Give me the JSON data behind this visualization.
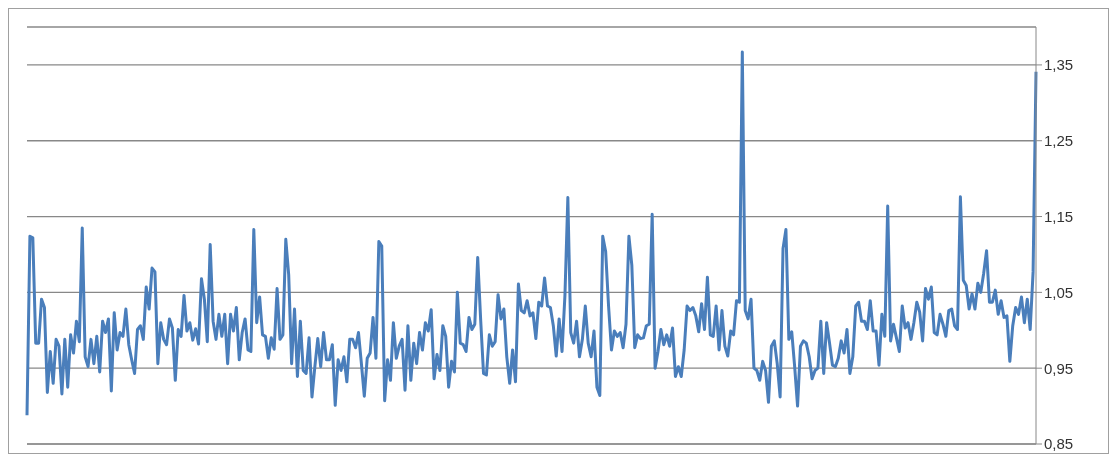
{
  "chart_data": {
    "type": "line",
    "color": "#4a7ebb",
    "values": [
      0.888,
      1.124,
      1.122,
      0.983,
      0.983,
      1.041,
      1.03,
      0.918,
      0.972,
      0.93,
      0.988,
      0.979,
      0.916,
      0.988,
      0.925,
      0.994,
      0.97,
      1.012,
      0.985,
      1.135,
      0.965,
      0.952,
      0.988,
      0.956,
      0.992,
      0.945,
      1.012,
      0.997,
      1.015,
      0.92,
      1.023,
      0.974,
      0.997,
      0.992,
      1.028,
      0.981,
      0.961,
      0.943,
      1.001,
      1.006,
      0.988,
      1.057,
      1.028,
      1.082,
      1.077,
      0.956,
      1.01,
      0.988,
      0.981,
      1.015,
      1.003,
      0.934,
      1.001,
      0.992,
      1.046,
      0.999,
      1.01,
      0.987,
      1.002,
      0.982,
      1.068,
      1.041,
      0.985,
      1.113,
      1.012,
      0.988,
      1.021,
      0.992,
      1.021,
      0.956,
      1.021,
      0.999,
      1.03,
      0.961,
      0.997,
      1.015,
      0.974,
      0.972,
      1.133,
      1.01,
      1.044,
      0.994,
      0.992,
      0.963,
      0.99,
      0.975,
      1.055,
      0.988,
      0.994,
      1.12,
      1.073,
      0.956,
      1.028,
      0.939,
      1.012,
      0.947,
      0.943,
      0.99,
      0.912,
      0.952,
      0.989,
      0.952,
      0.997,
      0.961,
      0.961,
      0.981,
      0.901,
      0.961,
      0.947,
      0.965,
      0.932,
      0.988,
      0.988,
      0.977,
      0.997,
      0.956,
      0.913,
      0.963,
      0.97,
      1.017,
      0.963,
      1.117,
      1.111,
      0.907,
      0.961,
      0.934,
      1.01,
      0.963,
      0.979,
      0.988,
      0.921,
      1.006,
      0.934,
      0.983,
      0.956,
      0.997,
      0.974,
      1.01,
      0.999,
      1.027,
      0.936,
      0.968,
      0.947,
      1.006,
      0.992,
      0.925,
      0.959,
      0.945,
      1.05,
      0.983,
      0.981,
      0.972,
      1.017,
      1.001,
      1.008,
      1.096,
      1.015,
      0.943,
      0.941,
      0.994,
      0.979,
      0.985,
      1.047,
      1.015,
      1.028,
      0.965,
      0.93,
      0.974,
      0.932,
      1.061,
      1.026,
      1.023,
      1.039,
      1.019,
      1.023,
      0.989,
      1.037,
      1.032,
      1.069,
      1.032,
      1.03,
      1.006,
      0.966,
      1.015,
      0.972,
      1.046,
      1.175,
      0.997,
      0.983,
      1.012,
      0.965,
      0.988,
      1.032,
      0.983,
      0.965,
      0.999,
      0.925,
      0.914,
      1.124,
      1.104,
      1.032,
      0.974,
      0.999,
      0.992,
      0.997,
      0.977,
      1.008,
      1.124,
      1.086,
      0.977,
      0.994,
      0.989,
      0.99,
      1.006,
      1.008,
      1.153,
      0.95,
      0.972,
      1.001,
      0.981,
      0.994,
      0.979,
      1.003,
      0.939,
      0.952,
      0.939,
      0.974,
      1.032,
      1.026,
      1.03,
      1.019,
      0.998,
      1.035,
      1.001,
      1.07,
      0.994,
      0.992,
      1.032,
      0.974,
      1.026,
      0.979,
      0.966,
      0.999,
      0.994,
      1.039,
      1.037,
      1.367,
      1.026,
      1.015,
      1.041,
      0.95,
      0.947,
      0.934,
      0.959,
      0.947,
      0.905,
      0.979,
      0.986,
      0.956,
      0.912,
      1.108,
      1.133,
      0.988,
      0.998,
      0.952,
      0.9,
      0.979,
      0.986,
      0.983,
      0.965,
      0.936,
      0.947,
      0.95,
      1.012,
      0.943,
      1.01,
      0.983,
      0.954,
      0.952,
      0.963,
      0.986,
      0.97,
      1.001,
      0.943,
      0.965,
      1.032,
      1.037,
      1.012,
      1.012,
      1.001,
      1.039,
      0.999,
      0.999,
      0.954,
      1.021,
      0.992,
      1.164,
      0.986,
      1.008,
      0.99,
      0.972,
      1.032,
      1.003,
      1.01,
      0.988,
      1.01,
      1.037,
      1.024,
      0.986,
      1.055,
      1.041,
      1.057,
      0.997,
      0.994,
      1.021,
      1.008,
      0.992,
      1.026,
      1.028,
      1.006,
      1.001,
      1.176,
      1.066,
      1.059,
      1.028,
      1.048,
      1.028,
      1.062,
      1.05,
      1.075,
      1.105,
      1.037,
      1.037,
      1.053,
      1.021,
      1.039,
      1.017,
      1.019,
      0.959,
      1.006,
      1.03,
      1.021,
      1.044,
      1.01,
      1.041,
      1.001,
      1.077,
      1.341
    ],
    "ylim": [
      0.85,
      1.4
    ],
    "yticks": [
      {
        "value": 0.85,
        "label": "0,85"
      },
      {
        "value": 0.95,
        "label": "0,95"
      },
      {
        "value": 1.05,
        "label": "1,05"
      },
      {
        "value": 1.15,
        "label": "1,15"
      },
      {
        "value": 1.25,
        "label": "1,25"
      },
      {
        "value": 1.35,
        "label": "1,35"
      }
    ],
    "grid": "y",
    "tick_labels": "y"
  }
}
